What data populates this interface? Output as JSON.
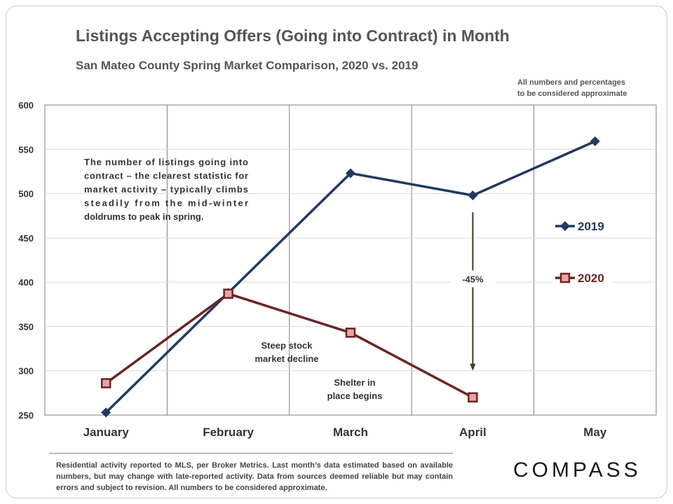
{
  "chart_data": {
    "type": "line",
    "title": "Listings Accepting Offers (Going into Contract) in Month",
    "subtitle": "San Mateo County Spring Market Comparison,  2020 vs. 2019",
    "categories": [
      "January",
      "February",
      "March",
      "April",
      "May"
    ],
    "ylim": [
      250,
      600
    ],
    "yticks": [
      250,
      300,
      350,
      400,
      450,
      500,
      550,
      600
    ],
    "grid": "vertical",
    "legend_position": "right",
    "series": [
      {
        "name": "2019",
        "color": "#1f3a5f",
        "marker": "diamond",
        "values": [
          253,
          388,
          523,
          498,
          559
        ]
      },
      {
        "name": "2020",
        "color": "#6b2424",
        "marker": "square",
        "values": [
          286,
          387,
          343,
          270,
          null
        ]
      }
    ],
    "annotations": {
      "note": "The number of listings going into contract – the clearest statistic for market activity – typically climbs steadily from the mid-winter doldrums to peak in spring.",
      "stock": [
        "Steep stock",
        "market decline"
      ],
      "shelter": [
        "Shelter in",
        "place begins"
      ],
      "change": "-45%"
    }
  },
  "approx_note": [
    "All numbers and percentages",
    "to be considered approximate"
  ],
  "footer": "Residential activity reported to MLS, per Broker Metrics. Last month’s data estimated based on available numbers, but may change with late-reported activity. Data from sources deemed reliable but may contain errors and subject to revision. All numbers to be considered approximate.",
  "brand": "COMPASS"
}
